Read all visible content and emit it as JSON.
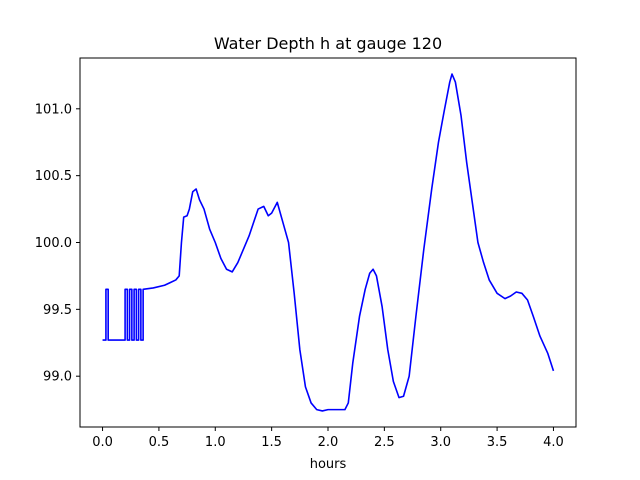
{
  "chart_data": {
    "type": "line",
    "title": "Water Depth h at gauge 120",
    "xlabel": "hours",
    "ylabel": "",
    "xlim": [
      -0.2,
      4.2
    ],
    "ylim": [
      98.62,
      101.38
    ],
    "xticks": [
      0.0,
      0.5,
      1.0,
      1.5,
      2.0,
      2.5,
      3.0,
      3.5,
      4.0
    ],
    "xtick_labels": [
      "0.0",
      "0.5",
      "1.0",
      "1.5",
      "2.0",
      "2.5",
      "3.0",
      "3.5",
      "4.0"
    ],
    "yticks": [
      99.0,
      99.5,
      100.0,
      100.5,
      101.0
    ],
    "ytick_labels": [
      "99.0",
      "99.5",
      "100.0",
      "100.5",
      "101.0"
    ],
    "grid": false,
    "series": [
      {
        "color": "#0000ff",
        "x": [
          0.0,
          0.03,
          0.03,
          0.05,
          0.05,
          0.06,
          0.06,
          0.2,
          0.2,
          0.22,
          0.22,
          0.24,
          0.24,
          0.26,
          0.26,
          0.28,
          0.28,
          0.3,
          0.3,
          0.32,
          0.32,
          0.34,
          0.34,
          0.36,
          0.36,
          0.45,
          0.55,
          0.6,
          0.65,
          0.68,
          0.7,
          0.72,
          0.75,
          0.77,
          0.8,
          0.83,
          0.86,
          0.9,
          0.95,
          1.0,
          1.05,
          1.1,
          1.15,
          1.2,
          1.3,
          1.38,
          1.43,
          1.47,
          1.5,
          1.55,
          1.6,
          1.65,
          1.7,
          1.75,
          1.8,
          1.85,
          1.9,
          1.95,
          2.0,
          2.05,
          2.1,
          2.15,
          2.18,
          2.22,
          2.28,
          2.33,
          2.37,
          2.4,
          2.43,
          2.48,
          2.53,
          2.58,
          2.63,
          2.67,
          2.72,
          2.78,
          2.85,
          2.92,
          2.98,
          3.03,
          3.08,
          3.1,
          3.13,
          3.18,
          3.23,
          3.28,
          3.33,
          3.38,
          3.43,
          3.5,
          3.57,
          3.62,
          3.67,
          3.72,
          3.77,
          3.82,
          3.88,
          3.95,
          4.0
        ],
        "y": [
          99.27,
          99.27,
          99.65,
          99.65,
          99.27,
          99.27,
          99.27,
          99.27,
          99.65,
          99.65,
          99.27,
          99.27,
          99.65,
          99.65,
          99.27,
          99.27,
          99.65,
          99.65,
          99.27,
          99.27,
          99.65,
          99.65,
          99.27,
          99.27,
          99.65,
          99.66,
          99.68,
          99.7,
          99.72,
          99.75,
          100.0,
          100.19,
          100.2,
          100.25,
          100.38,
          100.4,
          100.32,
          100.25,
          100.1,
          100.0,
          99.88,
          99.8,
          99.78,
          99.85,
          100.05,
          100.25,
          100.27,
          100.2,
          100.22,
          100.3,
          100.15,
          100.0,
          99.62,
          99.2,
          98.92,
          98.8,
          98.75,
          98.74,
          98.75,
          98.75,
          98.75,
          98.75,
          98.8,
          99.1,
          99.45,
          99.65,
          99.77,
          99.8,
          99.75,
          99.52,
          99.2,
          98.96,
          98.84,
          98.85,
          99.0,
          99.45,
          99.95,
          100.4,
          100.75,
          100.98,
          101.2,
          101.26,
          101.2,
          100.95,
          100.6,
          100.3,
          100.0,
          99.85,
          99.72,
          99.62,
          99.58,
          99.6,
          99.63,
          99.62,
          99.57,
          99.45,
          99.3,
          99.17,
          99.04
        ]
      }
    ]
  }
}
